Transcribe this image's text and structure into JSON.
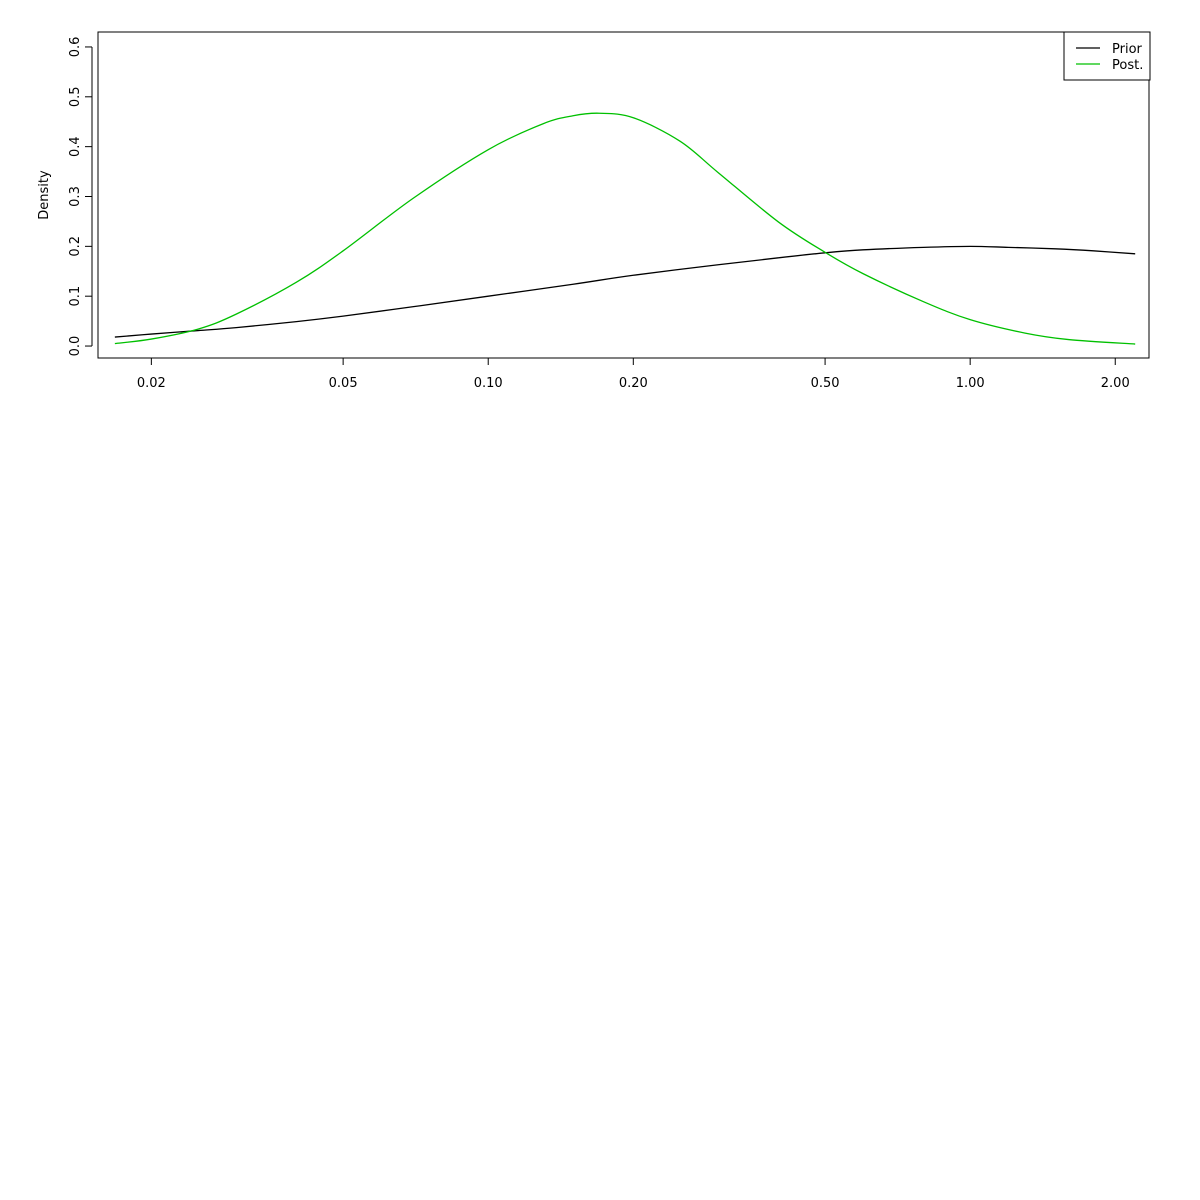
{
  "chart_data": {
    "type": "line",
    "xlabel": "",
    "ylabel": "Density",
    "x_scale": "log",
    "xlim": [
      0.0155,
      2.35
    ],
    "ylim": [
      -0.024,
      0.63
    ],
    "xticks": [
      0.02,
      0.05,
      0.1,
      0.2,
      0.5,
      1.0,
      2.0
    ],
    "xtick_labels": [
      "0.02",
      "0.05",
      "0.10",
      "0.20",
      "0.50",
      "1.00",
      "2.00"
    ],
    "yticks": [
      0.0,
      0.1,
      0.2,
      0.3,
      0.4,
      0.5,
      0.6
    ],
    "ytick_labels": [
      "0.0",
      "0.1",
      "0.2",
      "0.3",
      "0.4",
      "0.5",
      "0.6"
    ],
    "grid": false,
    "legend": {
      "position": "top-right",
      "entries": [
        "Prior",
        "Post."
      ]
    },
    "series": [
      {
        "name": "Prior",
        "color": "#000000",
        "x": [
          0.0168,
          0.02,
          0.025,
          0.03,
          0.04,
          0.05,
          0.07,
          0.1,
          0.15,
          0.2,
          0.3,
          0.4,
          0.5,
          0.6,
          0.8,
          1.0,
          1.2,
          1.5,
          1.8,
          2.2
        ],
        "y": [
          0.018,
          0.024,
          0.031,
          0.037,
          0.049,
          0.06,
          0.079,
          0.1,
          0.124,
          0.142,
          0.163,
          0.177,
          0.187,
          0.193,
          0.198,
          0.2,
          0.198,
          0.195,
          0.191,
          0.185
        ]
      },
      {
        "name": "Post.",
        "color": "#00c000",
        "x": [
          0.0168,
          0.02,
          0.025,
          0.03,
          0.04,
          0.05,
          0.07,
          0.1,
          0.13,
          0.15,
          0.17,
          0.2,
          0.25,
          0.3,
          0.4,
          0.5,
          0.6,
          0.8,
          1.0,
          1.3,
          1.6,
          2.2
        ],
        "y": [
          0.005,
          0.014,
          0.034,
          0.064,
          0.128,
          0.191,
          0.297,
          0.394,
          0.446,
          0.462,
          0.467,
          0.458,
          0.411,
          0.348,
          0.249,
          0.188,
          0.145,
          0.089,
          0.053,
          0.026,
          0.013,
          0.004
        ]
      }
    ]
  }
}
